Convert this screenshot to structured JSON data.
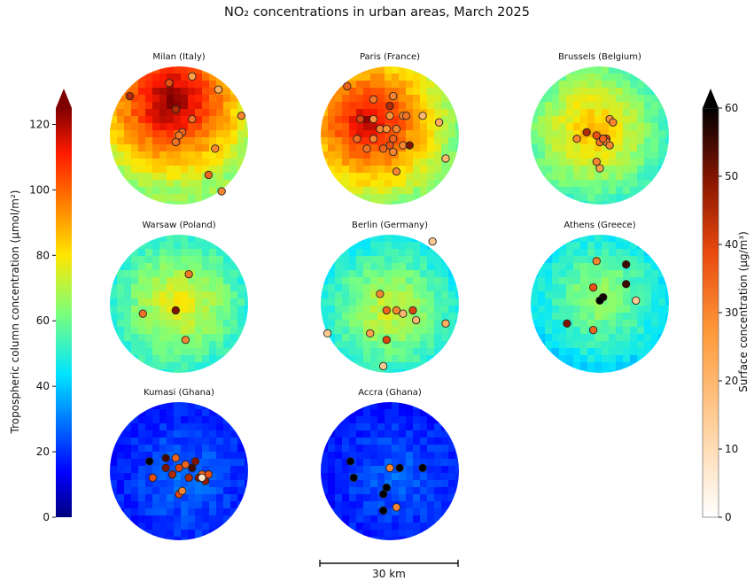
{
  "title": "NO₂ concentrations in urban areas, March 2025",
  "chart_data": {
    "type": "map-panels",
    "left_colorbar": {
      "label": "Tropospheric column concentration (μmol/m²)",
      "colormap": "jet",
      "range": [
        0,
        125
      ],
      "ticks": [
        0,
        20,
        40,
        60,
        80,
        100,
        120
      ],
      "extend": "max"
    },
    "right_colorbar": {
      "label": "Surface concentration (μg/m³)",
      "colormap": "gist_heat_r",
      "range": [
        0,
        60
      ],
      "ticks": [
        0,
        10,
        20,
        30,
        40,
        50,
        60
      ],
      "extend": "max"
    },
    "scale_bar": "30 km",
    "panels": [
      {
        "city": "Milan (Italy)",
        "background_level": 115,
        "hotspot": [
          -0.1,
          -0.5
        ],
        "stations": [
          [
            -0.75,
            -0.6,
            45
          ],
          [
            -0.15,
            -0.8,
            38
          ],
          [
            0.2,
            -0.9,
            25
          ],
          [
            0.6,
            -0.7,
            22
          ],
          [
            0.95,
            -0.3,
            30
          ],
          [
            -0.05,
            -0.4,
            45
          ],
          [
            0.2,
            -0.25,
            33
          ],
          [
            0.05,
            -0.05,
            35
          ],
          [
            0.0,
            0.0,
            32
          ],
          [
            -0.05,
            0.1,
            33
          ],
          [
            0.55,
            0.2,
            30
          ],
          [
            0.45,
            0.6,
            35
          ],
          [
            0.65,
            0.85,
            30
          ]
        ]
      },
      {
        "city": "Paris (France)",
        "background_level": 108,
        "hotspot": [
          -0.3,
          -0.2
        ],
        "stations": [
          [
            -0.65,
            -0.75,
            35
          ],
          [
            -0.25,
            -0.55,
            32
          ],
          [
            0.05,
            -0.6,
            30
          ],
          [
            0.0,
            -0.45,
            45
          ],
          [
            0.2,
            -0.3,
            30
          ],
          [
            0.0,
            -0.3,
            28
          ],
          [
            -0.45,
            -0.25,
            40
          ],
          [
            -0.25,
            -0.25,
            28
          ],
          [
            -0.15,
            -0.1,
            30
          ],
          [
            -0.05,
            -0.1,
            28
          ],
          [
            0.1,
            -0.1,
            30
          ],
          [
            0.25,
            -0.3,
            33
          ],
          [
            0.05,
            0.05,
            35
          ],
          [
            -0.25,
            0.05,
            30
          ],
          [
            0.0,
            0.15,
            38
          ],
          [
            0.2,
            0.15,
            30
          ],
          [
            0.3,
            0.15,
            50
          ],
          [
            -0.35,
            0.2,
            33
          ],
          [
            -0.1,
            0.2,
            35
          ],
          [
            0.05,
            0.25,
            30
          ],
          [
            0.1,
            0.55,
            30
          ],
          [
            0.5,
            -0.3,
            20
          ],
          [
            0.75,
            -0.2,
            22
          ],
          [
            0.85,
            0.35,
            20
          ],
          [
            -0.5,
            0.05,
            34
          ]
        ]
      },
      {
        "city": "Brussels (Belgium)",
        "background_level": 80,
        "hotspot": [
          -0.1,
          -0.1
        ],
        "stations": [
          [
            -0.2,
            -0.05,
            45
          ],
          [
            -0.35,
            0.05,
            30
          ],
          [
            0.15,
            -0.25,
            28
          ],
          [
            0.2,
            -0.2,
            30
          ],
          [
            -0.05,
            0.0,
            38
          ],
          [
            0.0,
            0.1,
            33
          ],
          [
            0.05,
            0.05,
            45
          ],
          [
            0.1,
            0.05,
            40
          ],
          [
            0.1,
            0.1,
            30
          ],
          [
            0.15,
            0.15,
            30
          ],
          [
            -0.05,
            0.4,
            30
          ],
          [
            0.0,
            0.5,
            25
          ],
          [
            0.05,
            0.05,
            35
          ]
        ]
      },
      {
        "city": "Warsaw (Poland)",
        "background_level": 72,
        "hotspot": [
          0.0,
          0.0
        ],
        "stations": [
          [
            0.15,
            -0.45,
            32
          ],
          [
            -0.05,
            0.1,
            50
          ],
          [
            -0.55,
            0.15,
            33
          ],
          [
            0.1,
            0.55,
            30
          ]
        ]
      },
      {
        "city": "Berlin (Germany)",
        "background_level": 68,
        "hotspot": [
          0.0,
          0.1
        ],
        "stations": [
          [
            0.65,
            -0.95,
            15
          ],
          [
            -0.15,
            -0.15,
            30
          ],
          [
            -0.05,
            0.1,
            35
          ],
          [
            0.1,
            0.1,
            30
          ],
          [
            0.2,
            0.15,
            20
          ],
          [
            0.35,
            0.1,
            40
          ],
          [
            0.85,
            0.3,
            22
          ],
          [
            0.4,
            0.25,
            20
          ],
          [
            -0.3,
            0.45,
            25
          ],
          [
            -0.05,
            0.55,
            40
          ],
          [
            -0.95,
            0.45,
            15
          ],
          [
            -0.1,
            0.95,
            15
          ]
        ]
      },
      {
        "city": "Athens (Greece)",
        "background_level": 62,
        "hotspot": [
          0.0,
          -0.1
        ],
        "stations": [
          [
            -0.05,
            -0.65,
            30
          ],
          [
            0.4,
            -0.6,
            55
          ],
          [
            -0.1,
            -0.25,
            38
          ],
          [
            0.4,
            -0.3,
            55
          ],
          [
            0.05,
            -0.1,
            58
          ],
          [
            0.0,
            -0.05,
            60
          ],
          [
            0.55,
            -0.05,
            15
          ],
          [
            -0.5,
            0.3,
            50
          ],
          [
            -0.1,
            0.4,
            35
          ]
        ]
      },
      {
        "city": "Kumasi (Ghana)",
        "background_level": 25,
        "hotspot": [
          0.1,
          0.1
        ],
        "stations": [
          [
            -0.2,
            -0.2,
            55
          ],
          [
            -0.05,
            -0.2,
            35
          ],
          [
            0.1,
            -0.1,
            35
          ],
          [
            0.25,
            -0.15,
            50
          ],
          [
            -0.2,
            -0.05,
            50
          ],
          [
            0.0,
            -0.05,
            40
          ],
          [
            0.2,
            -0.05,
            55
          ],
          [
            0.35,
            0.05,
            35
          ],
          [
            0.45,
            0.05,
            38
          ],
          [
            -0.1,
            0.05,
            45
          ],
          [
            0.15,
            0.1,
            45
          ],
          [
            0.3,
            0.1,
            50
          ],
          [
            0.4,
            0.15,
            48
          ],
          [
            -0.4,
            0.1,
            38
          ],
          [
            0.0,
            0.35,
            40
          ],
          [
            0.05,
            0.3,
            30
          ],
          [
            0.35,
            0.1,
            8
          ],
          [
            -0.45,
            -0.15,
            60
          ]
        ]
      },
      {
        "city": "Accra (Ghana)",
        "background_level": 24,
        "hotspot": [
          0.1,
          0.1
        ],
        "stations": [
          [
            -0.6,
            -0.15,
            60
          ],
          [
            0.0,
            -0.05,
            30
          ],
          [
            0.15,
            -0.05,
            60
          ],
          [
            0.5,
            -0.05,
            60
          ],
          [
            -0.55,
            0.1,
            60
          ],
          [
            -0.05,
            0.25,
            60
          ],
          [
            -0.1,
            0.35,
            60
          ],
          [
            0.1,
            0.55,
            30
          ],
          [
            -0.1,
            0.6,
            60
          ]
        ]
      }
    ]
  }
}
